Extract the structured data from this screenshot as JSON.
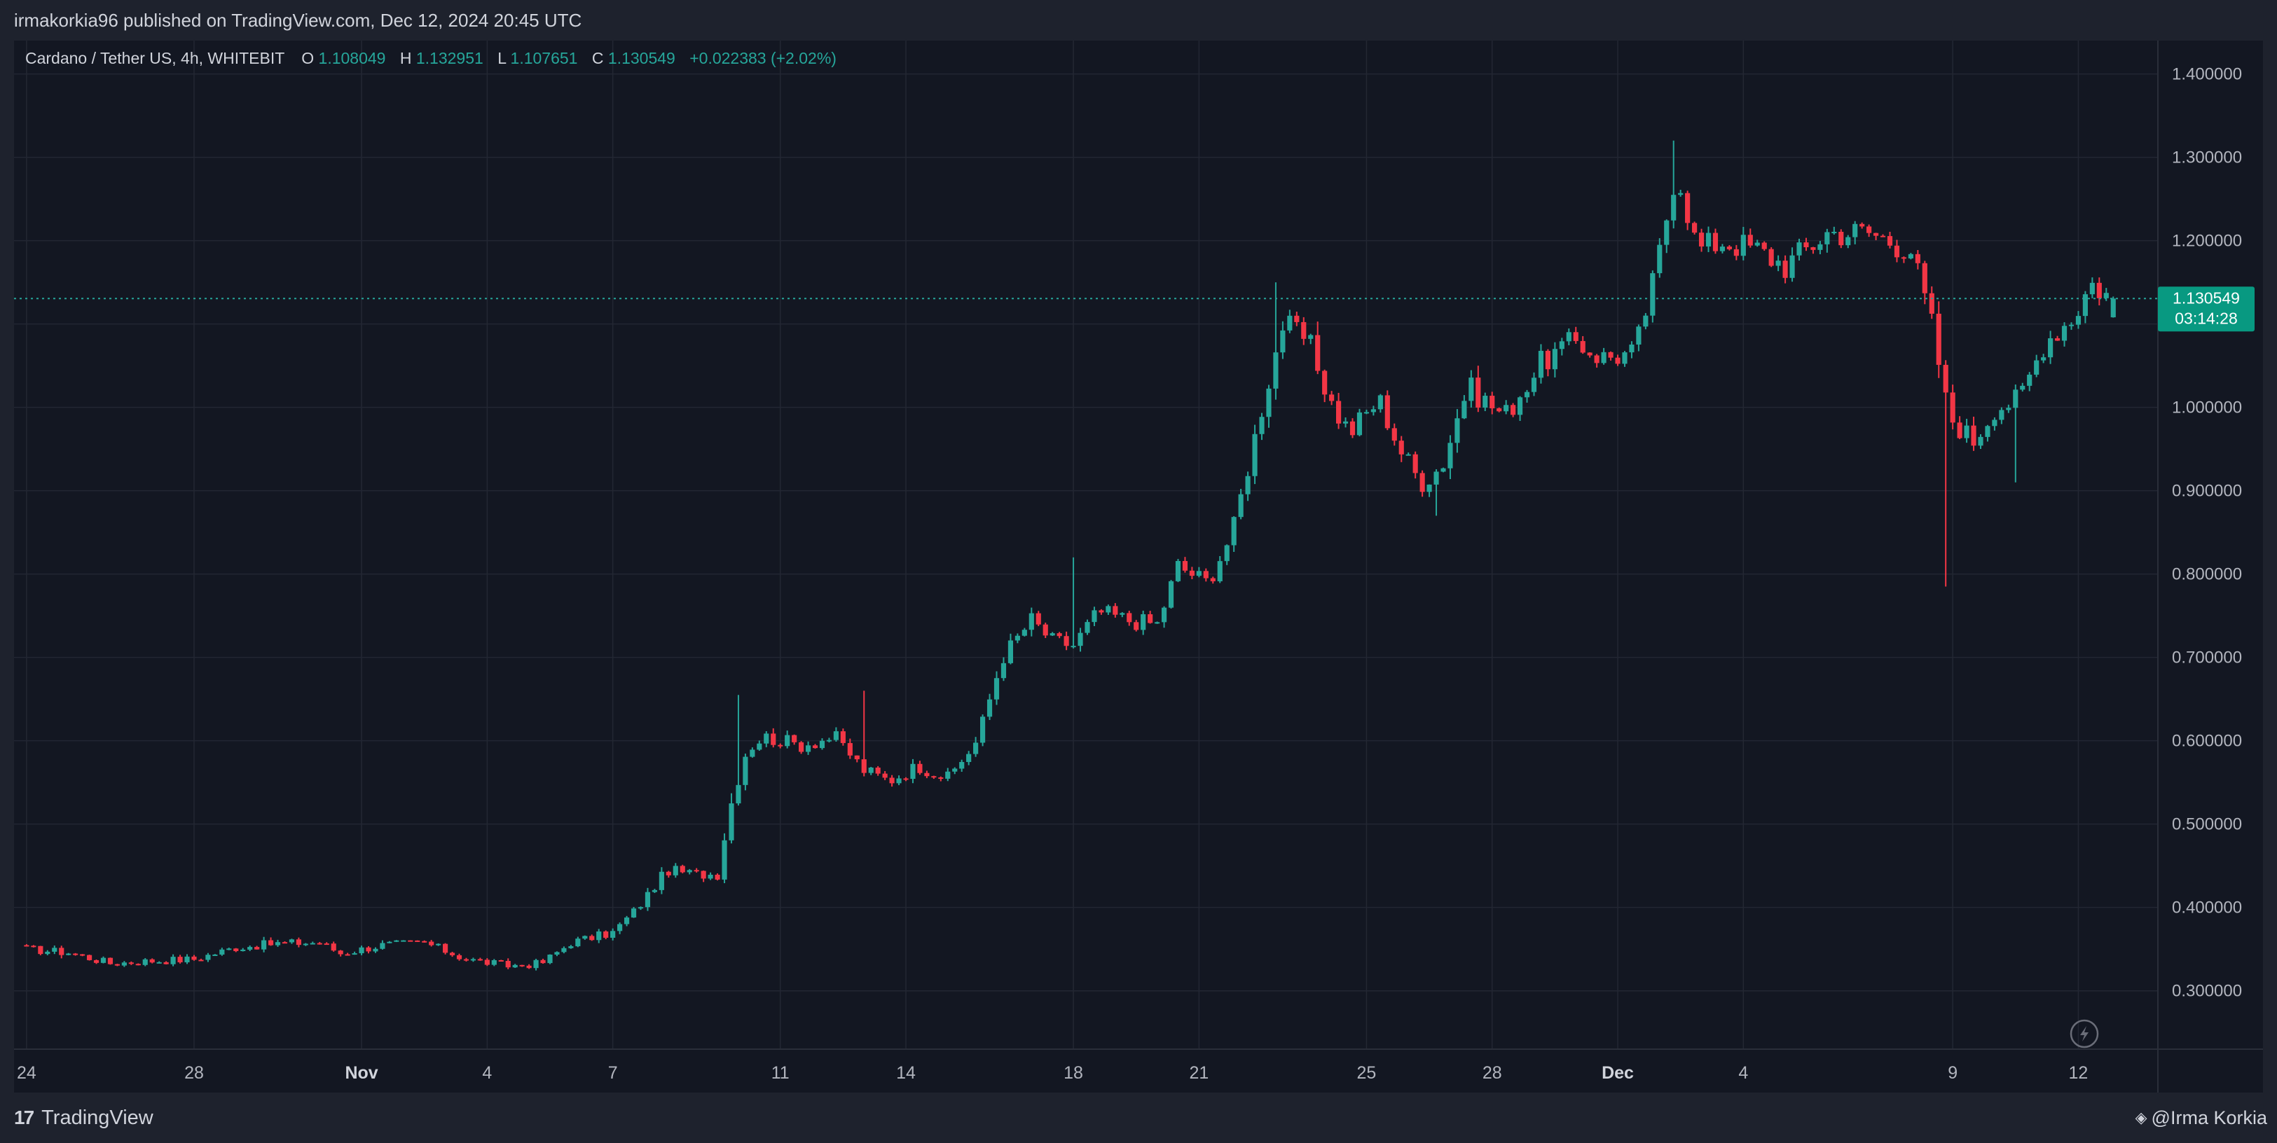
{
  "header": {
    "published": "irmakorkia96 published on TradingView.com, Dec 12, 2024 20:45 UTC"
  },
  "legend": {
    "symbol": "Cardano / Tether US, 4h, WHITEBIT",
    "o_label": "O",
    "o_value": "1.108049",
    "h_label": "H",
    "h_value": "1.132951",
    "l_label": "L",
    "l_value": "1.107651",
    "c_label": "C",
    "c_value": "1.130549",
    "change": "+0.022383 (+2.02%)"
  },
  "price_badge": {
    "price": "1.130549",
    "countdown": "03:14:28"
  },
  "footer": {
    "brand": "TradingView",
    "author": "@Irma Korkia"
  },
  "colors": {
    "up": "#26a69a",
    "down": "#f23645",
    "background": "#131722",
    "grid": "#232733",
    "text": "#b2b5be"
  },
  "icons": [
    "lightning-icon",
    "tradingview-logo-icon",
    "diamond-icon"
  ],
  "chart_data": {
    "type": "candlestick",
    "title": "Cardano / Tether US, 4h, WHITEBIT",
    "y_ticks": [
      "0.300000",
      "0.400000",
      "0.500000",
      "0.600000",
      "0.700000",
      "0.800000",
      "0.900000",
      "1.000000",
      "1.100000",
      "1.200000",
      "1.300000",
      "1.400000"
    ],
    "y_range": [
      0.23,
      1.44
    ],
    "x_ticks": [
      {
        "label": "24",
        "day": 0
      },
      {
        "label": "28",
        "day": 4
      },
      {
        "label": "Nov",
        "day": 8
      },
      {
        "label": "4",
        "day": 11
      },
      {
        "label": "7",
        "day": 14
      },
      {
        "label": "11",
        "day": 18
      },
      {
        "label": "14",
        "day": 21
      },
      {
        "label": "18",
        "day": 25
      },
      {
        "label": "21",
        "day": 28
      },
      {
        "label": "25",
        "day": 32
      },
      {
        "label": "28",
        "day": 35
      },
      {
        "label": "Dec",
        "day": 38
      },
      {
        "label": "4",
        "day": 41
      },
      {
        "label": "9",
        "day": 46
      },
      {
        "label": "12",
        "day": 49
      }
    ],
    "x_range_days": [
      -0.3,
      50.9
    ],
    "last_price": 1.130549,
    "grid": true,
    "anchors": [
      [
        0,
        0.35
      ],
      [
        1.0,
        0.346
      ],
      [
        2.0,
        0.333
      ],
      [
        3.0,
        0.336
      ],
      [
        4.0,
        0.338
      ],
      [
        5.0,
        0.352
      ],
      [
        6.0,
        0.357
      ],
      [
        7.0,
        0.358
      ],
      [
        7.5,
        0.345
      ],
      [
        8.5,
        0.355
      ],
      [
        9.5,
        0.358
      ],
      [
        10.5,
        0.338
      ],
      [
        11.5,
        0.33
      ],
      [
        12.3,
        0.333
      ],
      [
        13.0,
        0.358
      ],
      [
        14.0,
        0.37
      ],
      [
        14.6,
        0.4
      ],
      [
        15.3,
        0.445
      ],
      [
        16.0,
        0.44
      ],
      [
        16.5,
        0.44
      ],
      [
        16.8,
        0.52
      ],
      [
        17.2,
        0.59
      ],
      [
        17.6,
        0.605
      ],
      [
        18.5,
        0.595
      ],
      [
        19.3,
        0.605
      ],
      [
        20.0,
        0.565
      ],
      [
        20.6,
        0.552
      ],
      [
        21.3,
        0.57
      ],
      [
        22.0,
        0.555
      ],
      [
        22.7,
        0.6
      ],
      [
        23.3,
        0.7
      ],
      [
        24.0,
        0.745
      ],
      [
        24.5,
        0.72
      ],
      [
        25.0,
        0.715
      ],
      [
        25.6,
        0.755
      ],
      [
        26.3,
        0.745
      ],
      [
        27.0,
        0.74
      ],
      [
        27.5,
        0.81
      ],
      [
        28.2,
        0.79
      ],
      [
        28.8,
        0.85
      ],
      [
        29.5,
        1.0
      ],
      [
        30.0,
        1.1
      ],
      [
        30.6,
        1.08
      ],
      [
        31.2,
        1.0
      ],
      [
        31.6,
        0.97
      ],
      [
        32.3,
        1.01
      ],
      [
        32.8,
        0.95
      ],
      [
        33.3,
        0.91
      ],
      [
        33.8,
        0.93
      ],
      [
        34.4,
        1.025
      ],
      [
        35.3,
        0.99
      ],
      [
        36.2,
        1.055
      ],
      [
        37.0,
        1.08
      ],
      [
        37.6,
        1.06
      ],
      [
        38.4,
        1.065
      ],
      [
        38.9,
        1.16
      ],
      [
        39.4,
        1.29
      ],
      [
        39.9,
        1.19
      ],
      [
        40.5,
        1.2
      ],
      [
        41.3,
        1.19
      ],
      [
        42.0,
        1.17
      ],
      [
        43.0,
        1.21
      ],
      [
        44.0,
        1.21
      ],
      [
        45.0,
        1.19
      ],
      [
        45.5,
        1.1
      ],
      [
        45.9,
        0.99
      ],
      [
        46.5,
        0.96
      ],
      [
        47.0,
        1.0
      ],
      [
        47.6,
        1.01
      ],
      [
        48.2,
        1.08
      ],
      [
        48.9,
        1.11
      ],
      [
        49.3,
        1.15
      ],
      [
        49.8,
        1.131
      ]
    ],
    "spikes": [
      [
        17.0,
        0.655
      ],
      [
        20.0,
        0.66
      ],
      [
        25.0,
        0.82
      ],
      [
        29.9,
        1.15
      ],
      [
        33.6,
        0.87
      ],
      [
        39.3,
        1.32
      ],
      [
        45.9,
        0.785
      ],
      [
        47.5,
        0.91
      ]
    ]
  }
}
